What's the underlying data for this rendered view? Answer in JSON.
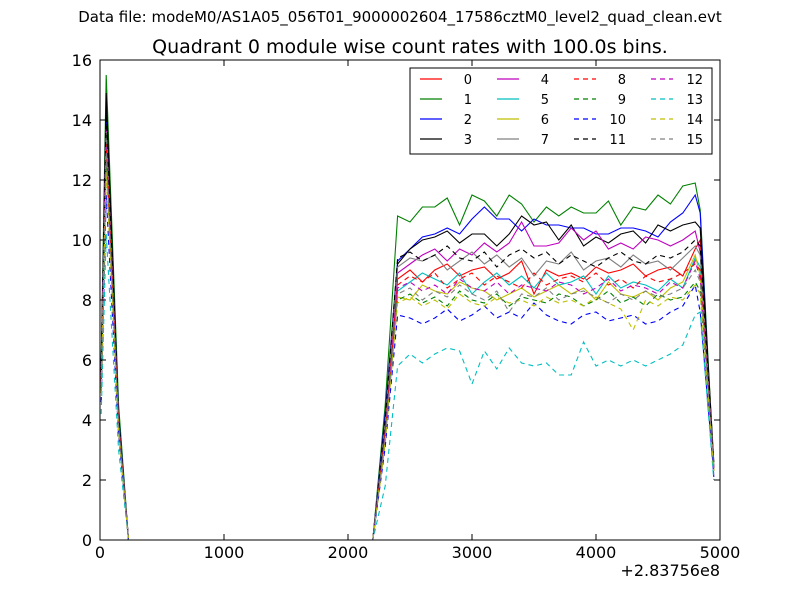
{
  "suptitle": "Data file: modeM0/AS1A05_056T01_9000002604_17586cztM0_level2_quad_clean.evt",
  "chart_data": {
    "type": "line",
    "title": "Quadrant 0 module wise count rates with 100.0s bins.",
    "xlabel": "",
    "ylabel": "",
    "x_offset_label": "+2.83756e8",
    "xlim": [
      0,
      5000
    ],
    "ylim": [
      0,
      16
    ],
    "xticks": [
      0,
      1000,
      2000,
      3000,
      4000,
      5000
    ],
    "yticks": [
      0,
      2,
      4,
      6,
      8,
      10,
      12,
      14,
      16
    ],
    "grid": false,
    "legend_position": "top-right",
    "x": [
      10,
      50,
      150,
      230,
      2200,
      2300,
      2400,
      2500,
      2600,
      2700,
      2800,
      2900,
      3000,
      3100,
      3200,
      3300,
      3400,
      3500,
      3600,
      3700,
      3800,
      3900,
      4000,
      4100,
      4200,
      4300,
      4400,
      4500,
      4600,
      4700,
      4800,
      4840,
      4950
    ],
    "series": [
      {
        "name": "0",
        "color": "#ff0000",
        "dash": "solid",
        "values": [
          5.5,
          13.5,
          4.0,
          0,
          0,
          3.5,
          8.7,
          9.0,
          8.6,
          9.0,
          9.2,
          8.8,
          9.0,
          9.1,
          8.7,
          8.9,
          9.3,
          8.2,
          9.0,
          8.8,
          8.9,
          8.7,
          9.1,
          8.9,
          9.0,
          9.2,
          8.8,
          9.0,
          9.1,
          8.8,
          9.7,
          10.0,
          2.3
        ]
      },
      {
        "name": "1",
        "color": "#008000",
        "dash": "solid",
        "values": [
          6.0,
          15.5,
          4.5,
          0,
          0,
          4.5,
          10.8,
          10.6,
          11.1,
          11.1,
          11.4,
          10.5,
          11.5,
          11.3,
          10.8,
          11.5,
          11.2,
          10.6,
          11.1,
          10.8,
          11.1,
          10.9,
          10.9,
          11.3,
          10.5,
          11.1,
          11.0,
          11.5,
          11.2,
          11.8,
          11.9,
          11.0,
          2.4
        ]
      },
      {
        "name": "2",
        "color": "#0000ff",
        "dash": "solid",
        "values": [
          5.8,
          14.5,
          4.2,
          0,
          0,
          4.2,
          9.3,
          9.7,
          10.1,
          10.2,
          10.4,
          10.2,
          10.7,
          11.1,
          10.7,
          10.7,
          10.3,
          10.7,
          10.5,
          10.5,
          10.4,
          10.4,
          10.2,
          10.2,
          10.4,
          10.4,
          10.3,
          10.1,
          10.6,
          10.9,
          11.5,
          10.9,
          2.1
        ]
      },
      {
        "name": "3",
        "color": "#000000",
        "dash": "solid",
        "values": [
          5.7,
          14.9,
          4.1,
          0,
          0,
          4.0,
          9.2,
          9.7,
          10.0,
          10.1,
          10.3,
          9.9,
          10.2,
          10.2,
          9.8,
          10.2,
          10.8,
          10.5,
          10.6,
          10.0,
          10.5,
          9.8,
          10.1,
          9.9,
          10.2,
          10.3,
          9.9,
          10.5,
          10.3,
          10.5,
          10.6,
          10.4,
          2.6
        ]
      },
      {
        "name": "4",
        "color": "#bf00bf",
        "dash": "solid",
        "values": [
          5.4,
          13.8,
          3.9,
          0,
          0,
          3.8,
          8.9,
          9.2,
          9.5,
          9.7,
          9.3,
          9.7,
          9.5,
          9.9,
          9.6,
          9.9,
          10.6,
          9.8,
          9.8,
          9.9,
          10.4,
          10.0,
          10.3,
          9.7,
          9.9,
          9.7,
          10.1,
          10.0,
          9.8,
          10.0,
          10.3,
          9.6,
          2.4
        ]
      },
      {
        "name": "5",
        "color": "#00bfbf",
        "dash": "solid",
        "values": [
          5.2,
          13.0,
          3.8,
          0,
          0,
          3.3,
          8.3,
          8.6,
          8.9,
          8.7,
          8.5,
          8.9,
          8.2,
          8.6,
          8.9,
          8.5,
          8.8,
          8.4,
          8.9,
          8.5,
          8.6,
          8.8,
          8.2,
          8.8,
          8.4,
          8.6,
          8.5,
          8.3,
          8.7,
          8.4,
          9.4,
          9.1,
          2.3
        ]
      },
      {
        "name": "6",
        "color": "#bfbf00",
        "dash": "solid",
        "values": [
          5.1,
          12.8,
          3.8,
          0,
          0,
          3.2,
          8.1,
          8.0,
          8.5,
          8.3,
          8.2,
          8.6,
          8.4,
          8.3,
          8.0,
          8.2,
          8.4,
          8.1,
          8.3,
          8.5,
          8.2,
          8.4,
          8.0,
          8.6,
          8.2,
          8.1,
          8.3,
          8.0,
          8.4,
          8.6,
          9.5,
          8.8,
          2.3
        ]
      },
      {
        "name": "7",
        "color": "#808080",
        "dash": "solid",
        "values": [
          5.5,
          13.6,
          4.0,
          0,
          0,
          3.9,
          9.1,
          9.4,
          9.3,
          9.5,
          9.0,
          9.3,
          9.6,
          9.2,
          9.5,
          9.1,
          9.4,
          8.8,
          9.3,
          9.2,
          9.6,
          9.0,
          9.3,
          9.4,
          9.1,
          9.5,
          9.2,
          9.3,
          9.0,
          9.4,
          9.8,
          9.5,
          2.5
        ]
      },
      {
        "name": "8",
        "color": "#ff0000",
        "dash": "dashed",
        "values": [
          5.3,
          13.2,
          3.9,
          0,
          0,
          3.6,
          8.5,
          8.8,
          8.6,
          8.9,
          8.4,
          8.7,
          8.9,
          8.5,
          8.8,
          8.6,
          8.4,
          8.9,
          8.5,
          8.7,
          8.8,
          8.6,
          8.9,
          8.5,
          8.7,
          8.4,
          8.8,
          8.6,
          8.7,
          8.9,
          9.2,
          9.0,
          2.4
        ]
      },
      {
        "name": "9",
        "color": "#008000",
        "dash": "dashed",
        "values": [
          5.0,
          12.5,
          3.7,
          0,
          0,
          3.4,
          8.0,
          8.2,
          7.9,
          8.1,
          7.8,
          8.3,
          8.0,
          7.9,
          8.2,
          7.8,
          8.1,
          8.0,
          7.9,
          8.2,
          8.1,
          7.8,
          8.0,
          8.3,
          7.9,
          8.1,
          7.8,
          8.2,
          8.0,
          8.1,
          8.6,
          8.3,
          2.3
        ]
      },
      {
        "name": "10",
        "color": "#0000ff",
        "dash": "dashed",
        "values": [
          4.6,
          11.5,
          3.5,
          0,
          0,
          3.1,
          7.5,
          7.4,
          7.2,
          7.4,
          7.7,
          7.3,
          7.5,
          7.8,
          7.4,
          7.6,
          7.4,
          7.9,
          7.5,
          7.3,
          7.2,
          7.5,
          7.6,
          7.3,
          7.4,
          7.5,
          7.2,
          7.3,
          7.6,
          7.8,
          8.5,
          7.6,
          2.2
        ]
      },
      {
        "name": "11",
        "color": "#000000",
        "dash": "dashed",
        "values": [
          5.6,
          14.2,
          4.1,
          0,
          0,
          4.0,
          9.4,
          9.6,
          9.3,
          9.5,
          9.8,
          9.4,
          9.3,
          9.6,
          9.1,
          9.5,
          9.7,
          9.4,
          9.6,
          9.2,
          9.5,
          9.3,
          9.1,
          9.4,
          9.6,
          9.3,
          9.2,
          9.5,
          9.4,
          9.6,
          10.0,
          9.8,
          2.5
        ]
      },
      {
        "name": "12",
        "color": "#bf00bf",
        "dash": "dashed",
        "values": [
          5.2,
          13.1,
          3.8,
          0,
          0,
          3.5,
          8.4,
          8.6,
          8.3,
          8.5,
          8.2,
          8.7,
          8.4,
          8.3,
          8.6,
          8.2,
          8.5,
          8.4,
          8.3,
          8.6,
          8.5,
          8.2,
          8.4,
          8.7,
          8.3,
          8.5,
          8.4,
          8.2,
          8.6,
          8.4,
          9.3,
          8.7,
          2.4
        ]
      },
      {
        "name": "13",
        "color": "#00bfbf",
        "dash": "dashed",
        "values": [
          4.2,
          10.2,
          3.0,
          0,
          0,
          1.8,
          5.8,
          6.2,
          5.9,
          6.2,
          6.4,
          6.3,
          5.2,
          6.3,
          5.7,
          6.4,
          5.9,
          5.8,
          5.9,
          5.5,
          5.5,
          6.6,
          5.8,
          6.0,
          5.8,
          6.0,
          5.8,
          6.0,
          6.2,
          6.5,
          7.5,
          7.6,
          2.0
        ]
      },
      {
        "name": "14",
        "color": "#bfbf00",
        "dash": "dashed",
        "values": [
          4.9,
          12.3,
          3.6,
          0,
          0,
          3.3,
          7.9,
          8.1,
          7.8,
          8.0,
          7.7,
          8.2,
          7.9,
          7.8,
          8.1,
          7.9,
          8.0,
          7.8,
          8.1,
          7.9,
          8.0,
          7.8,
          8.1,
          7.9,
          7.7,
          7.0,
          8.0,
          7.8,
          8.1,
          8.0,
          8.5,
          8.2,
          2.3
        ]
      },
      {
        "name": "15",
        "color": "#808080",
        "dash": "dashed",
        "values": [
          5.1,
          12.9,
          3.8,
          0,
          0,
          3.4,
          8.2,
          8.4,
          8.0,
          8.3,
          8.1,
          8.5,
          8.2,
          8.0,
          8.3,
          7.6,
          8.2,
          8.1,
          8.4,
          8.0,
          8.2,
          8.3,
          8.1,
          7.9,
          8.2,
          8.0,
          8.3,
          8.1,
          8.2,
          8.4,
          9.0,
          8.6,
          2.4
        ]
      }
    ]
  }
}
